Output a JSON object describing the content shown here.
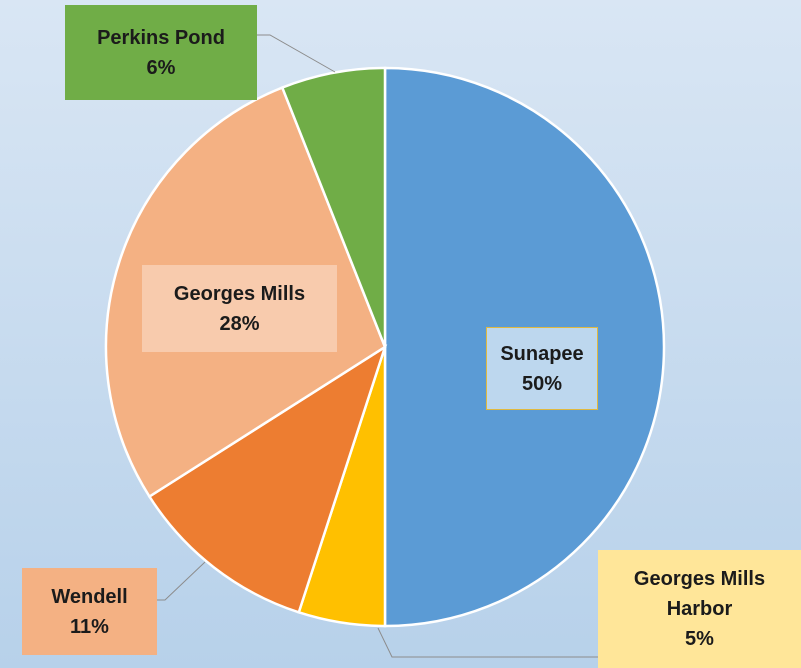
{
  "chart_data": {
    "type": "pie",
    "categories": [
      "Sunapee",
      "Georges Mills Harbor",
      "Wendell",
      "Georges Mills",
      "Perkins Pond"
    ],
    "values": [
      50,
      5,
      11,
      28,
      6
    ],
    "value_labels": [
      "50%",
      "5%",
      "11%",
      "28%",
      "6%"
    ],
    "colors": [
      "#5b9bd5",
      "#ffc000",
      "#ed7d31",
      "#f4b183",
      "#70ad47"
    ],
    "start_angle": 0,
    "direction": "clockwise"
  }
}
